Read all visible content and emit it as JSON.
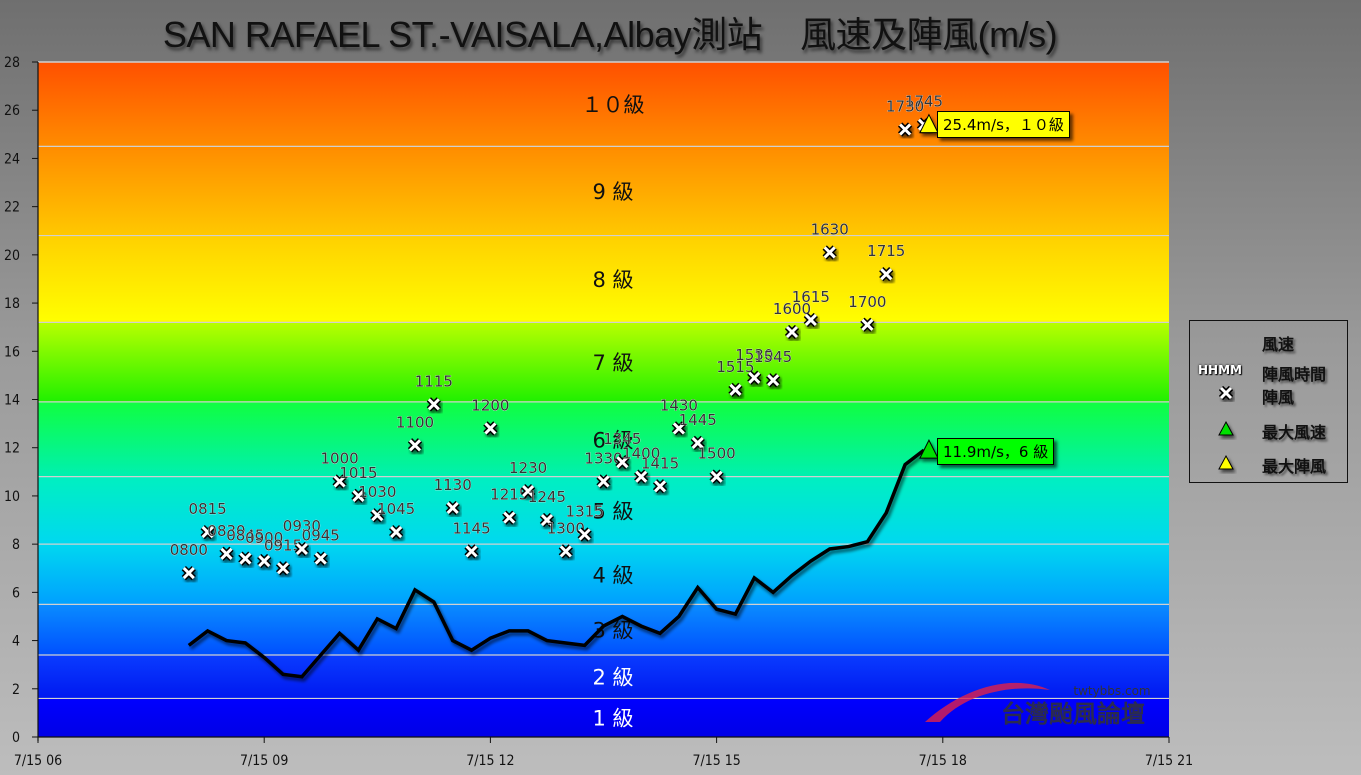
{
  "title": "SAN RAFAEL ST.-VAISALA,Albay測站    風速及陣風(m/s)",
  "colors": {
    "wind_line": "#000000",
    "max_wind_marker": "#00e000",
    "max_gust_marker": "#ffff00",
    "callout_wind_bg": "#00ff00",
    "callout_gust_bg": "#ffff00",
    "gridline": "#d0d0d0"
  },
  "legend": {
    "items": [
      {
        "symbol": "line",
        "label": "風速"
      },
      {
        "symbol": "HHMM",
        "label": "陣風時間"
      },
      {
        "symbol": "x-marker",
        "label": "陣風"
      },
      {
        "symbol": "green-triangle",
        "label": "最大風速"
      },
      {
        "symbol": "yellow-triangle",
        "label": "最大陣風"
      }
    ],
    "hhmm_text": "HHMM"
  },
  "callouts": {
    "max_gust": "25.4m/s，１０級",
    "max_wind": "11.9m/s，6 級"
  },
  "watermark": {
    "site": "twtybbs.com",
    "name": "台灣颱風論壇"
  },
  "chart_data": {
    "type": "line",
    "title": "SAN RAFAEL ST.-VAISALA,Albay測站 風速及陣風(m/s)",
    "xlabel": "",
    "ylabel": "m/s",
    "ylim": [
      0,
      28
    ],
    "xlim": [
      "7/15 06",
      "7/15 21"
    ],
    "x_ticks": [
      "7/15 06",
      "7/15 09",
      "7/15 12",
      "7/15 15",
      "7/15 18",
      "7/15 21"
    ],
    "y_ticks": [
      0,
      2,
      4,
      6,
      8,
      10,
      12,
      14,
      16,
      18,
      20,
      22,
      24,
      26,
      28
    ],
    "grid": "horizontal lines at Beaufort band boundaries",
    "legend_position": "right",
    "beaufort_bands": [
      {
        "label": "1 級",
        "from": 0.3,
        "to": 1.6
      },
      {
        "label": "2 級",
        "from": 1.6,
        "to": 3.4
      },
      {
        "label": "3 級",
        "from": 3.4,
        "to": 5.5
      },
      {
        "label": "4 級",
        "from": 5.5,
        "to": 8.0
      },
      {
        "label": "5 級",
        "from": 8.0,
        "to": 10.8
      },
      {
        "label": "6 級",
        "from": 10.8,
        "to": 13.9
      },
      {
        "label": "7 級",
        "from": 13.9,
        "to": 17.2
      },
      {
        "label": "8 級",
        "from": 17.2,
        "to": 20.8
      },
      {
        "label": "9 級",
        "from": 20.8,
        "to": 24.5
      },
      {
        "label": "１０級",
        "from": 24.5,
        "to": 28.5
      }
    ],
    "series": [
      {
        "name": "風速",
        "kind": "line",
        "x": [
          "0800",
          "0815",
          "0830",
          "0845",
          "0900",
          "0915",
          "0930",
          "0945",
          "1000",
          "1015",
          "1030",
          "1045",
          "1100",
          "1115",
          "1130",
          "1145",
          "1200",
          "1215",
          "1230",
          "1245",
          "1300",
          "1315",
          "1330",
          "1345",
          "1400",
          "1415",
          "1430",
          "1445",
          "1500",
          "1515",
          "1530",
          "1545",
          "1600",
          "1615",
          "1630",
          "1645",
          "1700",
          "1715",
          "1730",
          "1745"
        ],
        "values": [
          3.8,
          4.4,
          4.0,
          3.9,
          3.3,
          2.6,
          2.5,
          3.4,
          4.3,
          3.6,
          4.9,
          4.5,
          6.1,
          5.6,
          4.0,
          3.6,
          4.1,
          4.4,
          4.4,
          4.0,
          3.9,
          3.8,
          4.6,
          5.0,
          4.6,
          4.3,
          5.0,
          6.2,
          5.3,
          5.1,
          6.6,
          6.0,
          6.7,
          7.3,
          7.8,
          7.9,
          8.1,
          9.3,
          11.3,
          11.9
        ]
      },
      {
        "name": "陣風",
        "kind": "scatter",
        "x": [
          "0800",
          "0815",
          "0830",
          "0845",
          "0900",
          "0915",
          "0930",
          "0945",
          "1000",
          "1015",
          "1030",
          "1045",
          "1100",
          "1115",
          "1130",
          "1145",
          "1200",
          "1215",
          "1230",
          "1245",
          "1300",
          "1315",
          "1330",
          "1345",
          "1400",
          "1415",
          "1430",
          "1445",
          "1500",
          "1515",
          "1530",
          "1545",
          "1600",
          "1615",
          "1630",
          "1700",
          "1715",
          "1730",
          "1745"
        ],
        "values": [
          6.8,
          8.5,
          7.6,
          7.4,
          7.3,
          7.0,
          7.8,
          7.4,
          10.6,
          10.0,
          9.2,
          8.5,
          12.1,
          13.8,
          9.5,
          7.7,
          12.8,
          9.1,
          10.2,
          9.0,
          7.7,
          8.4,
          10.6,
          11.4,
          10.8,
          10.4,
          12.8,
          12.2,
          10.8,
          14.4,
          14.9,
          14.8,
          16.8,
          17.3,
          20.1,
          17.1,
          19.2,
          25.2,
          25.4
        ]
      }
    ],
    "annotations": [
      {
        "type": "max_wind",
        "time": "1745",
        "value": 11.9,
        "text": "11.9m/s，6 級"
      },
      {
        "type": "max_gust",
        "time": "1745",
        "value": 25.4,
        "text": "25.4m/s，１０級"
      }
    ]
  }
}
